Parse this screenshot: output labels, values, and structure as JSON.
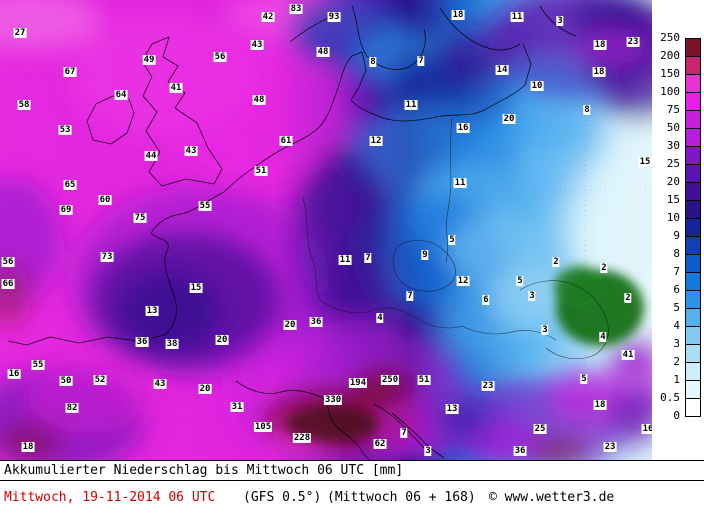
{
  "map": {
    "values": [
      [
        "27",
        20,
        33
      ],
      [
        "42",
        268,
        17
      ],
      [
        "83",
        296,
        9
      ],
      [
        "93",
        334,
        17
      ],
      [
        "18",
        458,
        15
      ],
      [
        "11",
        517,
        17
      ],
      [
        "3",
        560,
        21
      ],
      [
        "18",
        600,
        45
      ],
      [
        "23",
        633,
        42
      ],
      [
        "67",
        70,
        72
      ],
      [
        "49",
        149,
        60
      ],
      [
        "56",
        220,
        57
      ],
      [
        "43",
        257,
        45
      ],
      [
        "48",
        323,
        52
      ],
      [
        "8",
        373,
        62
      ],
      [
        "7",
        421,
        61
      ],
      [
        "14",
        502,
        70
      ],
      [
        "18",
        599,
        72
      ],
      [
        "58",
        24,
        105
      ],
      [
        "64",
        121,
        95
      ],
      [
        "41",
        176,
        88
      ],
      [
        "48",
        259,
        100
      ],
      [
        "10",
        537,
        86
      ],
      [
        "11",
        411,
        105
      ],
      [
        "20",
        509,
        119
      ],
      [
        "8",
        587,
        110
      ],
      [
        "53",
        65,
        130
      ],
      [
        "44",
        151,
        156
      ],
      [
        "43",
        191,
        151
      ],
      [
        "51",
        261,
        171
      ],
      [
        "61",
        286,
        141
      ],
      [
        "12",
        376,
        141
      ],
      [
        "16",
        463,
        128
      ],
      [
        "65",
        70,
        185
      ],
      [
        "69",
        66,
        210
      ],
      [
        "60",
        105,
        200
      ],
      [
        "75",
        140,
        218
      ],
      [
        "11",
        460,
        183
      ],
      [
        "15",
        645,
        162
      ],
      [
        "56",
        8,
        262
      ],
      [
        "73",
        107,
        257
      ],
      [
        "55",
        205,
        206
      ],
      [
        "15",
        196,
        288
      ],
      [
        "7",
        368,
        258
      ],
      [
        "11",
        345,
        260
      ],
      [
        "9",
        425,
        255
      ],
      [
        "5",
        452,
        240
      ],
      [
        "2",
        556,
        262
      ],
      [
        "2",
        604,
        268
      ],
      [
        "66",
        8,
        284
      ],
      [
        "13",
        152,
        311
      ],
      [
        "12",
        463,
        281
      ],
      [
        "7",
        410,
        296
      ],
      [
        "5",
        520,
        281
      ],
      [
        "3",
        532,
        296
      ],
      [
        "4",
        380,
        318
      ],
      [
        "36",
        316,
        322
      ],
      [
        "20",
        290,
        325
      ],
      [
        "4",
        603,
        337
      ],
      [
        "2",
        628,
        298
      ],
      [
        "36",
        142,
        342
      ],
      [
        "38",
        172,
        344
      ],
      [
        "20",
        222,
        340
      ],
      [
        "3",
        545,
        330
      ],
      [
        "6",
        486,
        300
      ],
      [
        "16",
        14,
        374
      ],
      [
        "55",
        38,
        365
      ],
      [
        "50",
        66,
        381
      ],
      [
        "82",
        72,
        408
      ],
      [
        "52",
        100,
        380
      ],
      [
        "43",
        160,
        384
      ],
      [
        "20",
        205,
        389
      ],
      [
        "31",
        237,
        407
      ],
      [
        "105",
        263,
        427
      ],
      [
        "228",
        302,
        438
      ],
      [
        "330",
        333,
        400
      ],
      [
        "194",
        358,
        383
      ],
      [
        "250",
        390,
        380
      ],
      [
        "62",
        380,
        444
      ],
      [
        "51",
        424,
        380
      ],
      [
        "41",
        628,
        355
      ],
      [
        "18",
        600,
        405
      ],
      [
        "23",
        488,
        386
      ],
      [
        "13",
        452,
        409
      ],
      [
        "25",
        540,
        429
      ],
      [
        "36",
        520,
        451
      ],
      [
        "23",
        610,
        447
      ],
      [
        "16",
        648,
        429
      ],
      [
        "18",
        28,
        447
      ],
      [
        "3",
        428,
        451
      ],
      [
        "7",
        404,
        433
      ],
      [
        "5",
        584,
        379
      ]
    ]
  },
  "legend": {
    "labels": [
      "250",
      "200",
      "150",
      "100",
      "75",
      "50",
      "30",
      "25",
      "20",
      "15",
      "10",
      "9",
      "8",
      "7",
      "6",
      "5",
      "4",
      "3",
      "2",
      "1",
      "0.5",
      "0"
    ],
    "colors": [
      "#7d1128",
      "#c82470",
      "#e832d2",
      "#e61ee6",
      "#c81ee0",
      "#b81cdc",
      "#7e18c6",
      "#5c14ae",
      "#401095",
      "#2a1288",
      "#16239b",
      "#1240b2",
      "#0e5ccb",
      "#1478de",
      "#2a94ea",
      "#52b2f0",
      "#82caf3",
      "#aadef7",
      "#cceefa",
      "#e4f7fc",
      "#ffffff"
    ]
  },
  "footer": {
    "title": "Akkumulierter Niederschlag bis Mittwoch 06 UTC [mm]",
    "date": "Mittwoch, 19-11-2014 06 UTC",
    "model": "(GFS 0.5°)",
    "run": "(Mittwoch 06 + 168)",
    "credit": "© www.wetter3.de",
    "date_color": "#d40000"
  }
}
